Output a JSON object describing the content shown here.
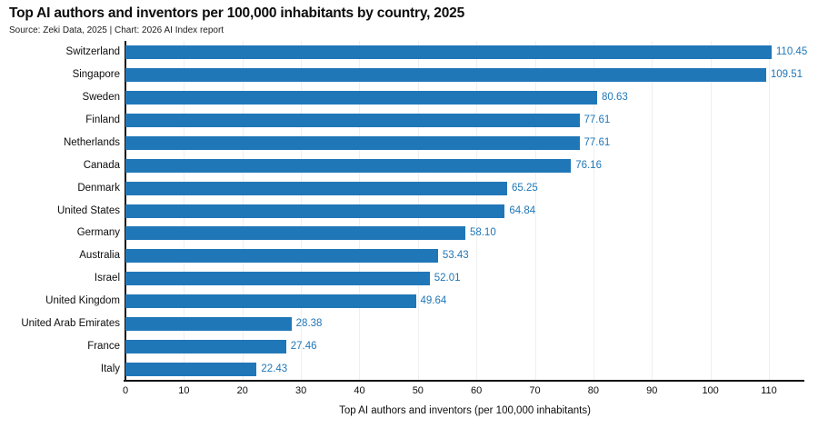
{
  "header": {
    "title": "Top AI authors and inventors per 100,000 inhabitants by country, 2025",
    "source": "Source: Zeki Data, 2025 | Chart: 2026 AI Index report"
  },
  "chart_data": {
    "type": "bar",
    "orientation": "horizontal",
    "title": "Top AI authors and inventors per 100,000 inhabitants by country, 2025",
    "subtitle": "Source: Zeki Data, 2025 | Chart: 2026 AI Index report",
    "categories": [
      "Switzerland",
      "Singapore",
      "Sweden",
      "Finland",
      "Netherlands",
      "Canada",
      "Denmark",
      "United States",
      "Germany",
      "Australia",
      "Israel",
      "United Kingdom",
      "United Arab Emirates",
      "France",
      "Italy"
    ],
    "values": [
      110.45,
      109.51,
      80.63,
      77.61,
      77.61,
      76.16,
      65.25,
      64.84,
      58.1,
      53.43,
      52.01,
      49.64,
      28.38,
      27.46,
      22.43
    ],
    "value_labels": [
      "110.45",
      "109.51",
      "80.63",
      "77.61",
      "77.61",
      "76.16",
      "65.25",
      "64.84",
      "58.10",
      "53.43",
      "52.01",
      "49.64",
      "28.38",
      "27.46",
      "22.43"
    ],
    "xlabel": "Top AI authors and inventors (per 100,000 inhabitants)",
    "ylabel": "",
    "xticks": [
      "0",
      "10",
      "20",
      "30",
      "40",
      "50",
      "60",
      "70",
      "80",
      "90",
      "100",
      "110"
    ],
    "xtick_values": [
      0,
      10,
      20,
      30,
      40,
      50,
      60,
      70,
      80,
      90,
      100,
      110
    ],
    "xlim": [
      0,
      116
    ],
    "grid": true,
    "legend_position": "none"
  },
  "colors": {
    "bar": "#2077B8",
    "value_label": "#2077B8",
    "axis": "#111111",
    "gridline": "#efefef",
    "text": "#0d0d0d"
  }
}
